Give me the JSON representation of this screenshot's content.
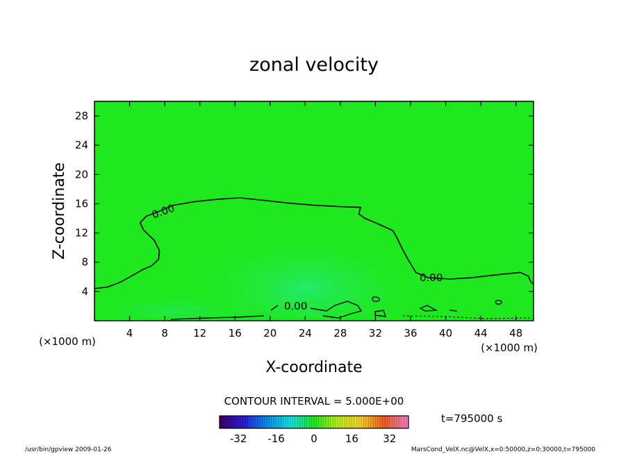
{
  "chart_data": {
    "type": "heatmap",
    "title": "zonal velocity",
    "xlabel": "X-coordinate",
    "ylabel": "Z-coordinate",
    "x_unit_label": "(×1000 m)",
    "y_unit_label": "(×1000 m)",
    "xlim": [
      0,
      50
    ],
    "ylim": [
      0,
      30
    ],
    "x_ticks": [
      4,
      8,
      12,
      16,
      20,
      24,
      28,
      32,
      36,
      40,
      44,
      48
    ],
    "y_ticks": [
      4,
      8,
      12,
      16,
      20,
      24,
      28
    ],
    "field_base_color": "#1ee81e",
    "contour_interval_text": "CONTOUR INTERVAL = 5.000E+00",
    "contour_labels": [
      "0.00",
      "0.00",
      "0.00"
    ],
    "zero_contour": [
      [
        0.0,
        4.4
      ],
      [
        1.5,
        4.6
      ],
      [
        3.0,
        5.3
      ],
      [
        4.5,
        6.3
      ],
      [
        5.5,
        7.0
      ],
      [
        6.5,
        7.5
      ],
      [
        7.3,
        8.4
      ],
      [
        7.4,
        9.6
      ],
      [
        6.8,
        11.0
      ],
      [
        5.6,
        12.4
      ],
      [
        5.2,
        13.4
      ],
      [
        5.9,
        14.3
      ],
      [
        6.8,
        14.7
      ],
      [
        9.0,
        15.8
      ],
      [
        11.5,
        16.3
      ],
      [
        14.0,
        16.6
      ],
      [
        16.5,
        16.8
      ],
      [
        19.0,
        16.5
      ],
      [
        22.0,
        16.1
      ],
      [
        25.0,
        15.8
      ],
      [
        28.0,
        15.6
      ],
      [
        30.3,
        15.5
      ],
      [
        30.1,
        14.6
      ],
      [
        30.8,
        14.0
      ],
      [
        32.4,
        13.2
      ],
      [
        34.0,
        12.3
      ],
      [
        34.6,
        11.0
      ],
      [
        35.1,
        9.7
      ],
      [
        35.6,
        8.6
      ],
      [
        36.2,
        7.4
      ],
      [
        36.6,
        6.6
      ],
      [
        38.0,
        5.9
      ],
      [
        40.5,
        5.7
      ],
      [
        43.0,
        5.9
      ],
      [
        46.0,
        6.3
      ],
      [
        48.5,
        6.6
      ],
      [
        49.4,
        6.1
      ],
      [
        49.7,
        5.3
      ],
      [
        50.0,
        5.0
      ]
    ],
    "colorbar": {
      "range": [
        -40,
        40
      ],
      "tick_labels": [
        "-32",
        "-16",
        "0",
        "16",
        "32"
      ],
      "tick_values": [
        -32,
        -16,
        0,
        16,
        32
      ],
      "colors": [
        "#3a0070",
        "#2a1cd8",
        "#0a8fe8",
        "#12e0e0",
        "#1ee81e",
        "#b8ee1a",
        "#f3d12a",
        "#ee5a20",
        "#f07fbf"
      ]
    },
    "time_label": "t=795000 s",
    "footer_left": "/usr/bin/gpview   2009-01-26",
    "footer_right": "MarsCond_VelX.nc@VelX,x=0:50000,z=0:30000,t=795000"
  }
}
